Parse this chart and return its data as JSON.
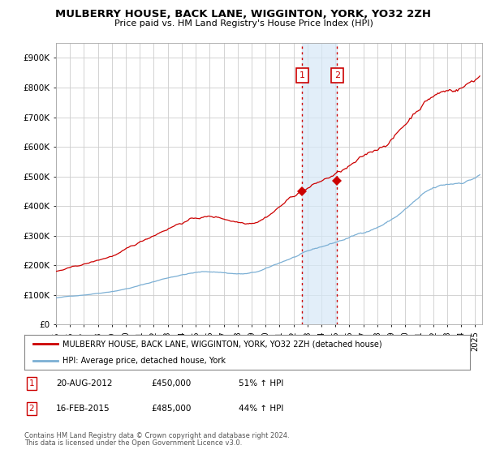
{
  "title": "MULBERRY HOUSE, BACK LANE, WIGGINTON, YORK, YO32 2ZH",
  "subtitle": "Price paid vs. HM Land Registry's House Price Index (HPI)",
  "ylabel_values": [
    "£0",
    "£100K",
    "£200K",
    "£300K",
    "£400K",
    "£500K",
    "£600K",
    "£700K",
    "£800K",
    "£900K"
  ],
  "ylim": [
    0,
    950000
  ],
  "xlim_start": 1995.0,
  "xlim_end": 2025.5,
  "red_line_color": "#cc0000",
  "blue_line_color": "#7bafd4",
  "legend_label_red": "MULBERRY HOUSE, BACK LANE, WIGGINTON, YORK, YO32 2ZH (detached house)",
  "legend_label_blue": "HPI: Average price, detached house, York",
  "purchase1_date": "20-AUG-2012",
  "purchase1_price": "£450,000",
  "purchase1_pct": "51% ↑ HPI",
  "purchase1_year": 2012.63,
  "purchase1_value": 450000,
  "purchase2_date": "16-FEB-2015",
  "purchase2_price": "£485,000",
  "purchase2_pct": "44% ↑ HPI",
  "purchase2_year": 2015.12,
  "purchase2_value": 485000,
  "footnote1": "Contains HM Land Registry data © Crown copyright and database right 2024.",
  "footnote2": "This data is licensed under the Open Government Licence v3.0.",
  "background_color": "#ffffff",
  "plot_bg_color": "#ffffff",
  "grid_color": "#cccccc",
  "xticks": [
    1995,
    1996,
    1997,
    1998,
    1999,
    2000,
    2001,
    2002,
    2003,
    2004,
    2005,
    2006,
    2007,
    2008,
    2009,
    2010,
    2011,
    2012,
    2013,
    2014,
    2015,
    2016,
    2017,
    2018,
    2019,
    2020,
    2021,
    2022,
    2023,
    2024,
    2025
  ]
}
